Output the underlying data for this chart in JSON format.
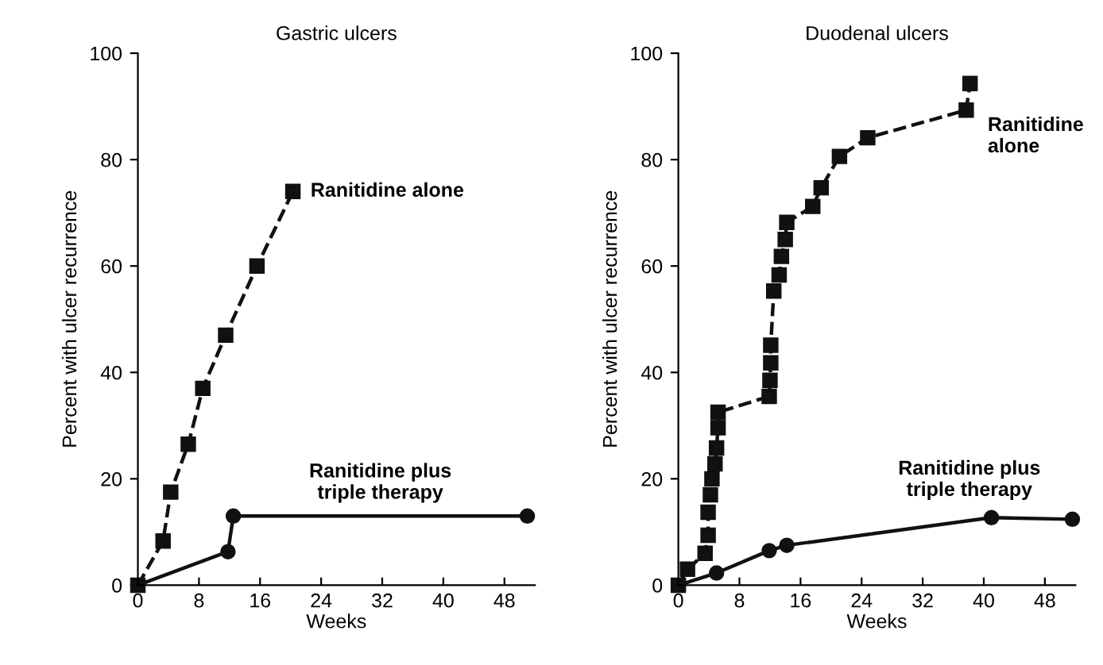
{
  "chart_data": [
    {
      "type": "line",
      "title": "Gastric ulcers",
      "xlabel": "Weeks",
      "ylabel": "Percent with ulcer recurrence",
      "xlim": [
        0,
        52
      ],
      "xticks": [
        0,
        8,
        16,
        24,
        32,
        40,
        48
      ],
      "ylim": [
        0,
        100
      ],
      "yticks": [
        0,
        20,
        40,
        60,
        80,
        100
      ],
      "grid": false,
      "legend": false,
      "series": [
        {
          "name": "Ranitidine alone",
          "color": "#111111",
          "marker": "square",
          "line_style": "dashed",
          "x": [
            0,
            3.3,
            4.3,
            6.6,
            8.5,
            11.5,
            15.6,
            20.3
          ],
          "values": [
            0,
            8.3,
            17.5,
            26.5,
            37,
            47,
            60,
            74
          ]
        },
        {
          "name": "Ranitidine plus\ntriple therapy",
          "color": "#111111",
          "marker": "circle",
          "line_style": "solid",
          "x": [
            0,
            11.8,
            12.5,
            51
          ],
          "values": [
            0,
            6.3,
            13,
            13
          ]
        }
      ]
    },
    {
      "type": "line",
      "title": "Duodenal ulcers",
      "xlabel": "Weeks",
      "ylabel": "Percent with ulcer recurrence",
      "xlim": [
        0,
        52
      ],
      "xticks": [
        0,
        8,
        16,
        24,
        32,
        40,
        48
      ],
      "ylim": [
        0,
        100
      ],
      "yticks": [
        0,
        20,
        40,
        60,
        80,
        100
      ],
      "grid": false,
      "legend": false,
      "series": [
        {
          "name": "Ranitidine\nalone",
          "color": "#111111",
          "marker": "square",
          "line_style": "dashed",
          "x": [
            0,
            1.2,
            3.5,
            3.9,
            3.9,
            4.2,
            4.4,
            4.8,
            5.0,
            5.2,
            5.2,
            11.9,
            12.0,
            12.1,
            12.1,
            12.5,
            13.2,
            13.5,
            14.0,
            14.2,
            17.6,
            18.7,
            21.1,
            24.8,
            37.7,
            38.2
          ],
          "values": [
            0,
            3,
            6,
            9.4,
            13.7,
            17,
            20,
            22.8,
            25.8,
            29.6,
            32.5,
            35.5,
            38.5,
            41.8,
            45.1,
            55.3,
            58.3,
            61.8,
            65,
            68.2,
            71.2,
            74.7,
            80.6,
            84.1,
            89.3,
            94.3
          ]
        },
        {
          "name": "Ranitidine plus\ntriple therapy",
          "color": "#111111",
          "marker": "circle",
          "line_style": "solid",
          "x": [
            0,
            5,
            11.9,
            14.2,
            41,
            51.6
          ],
          "values": [
            0,
            2.3,
            6.5,
            7.5,
            12.7,
            12.4
          ]
        }
      ]
    }
  ]
}
